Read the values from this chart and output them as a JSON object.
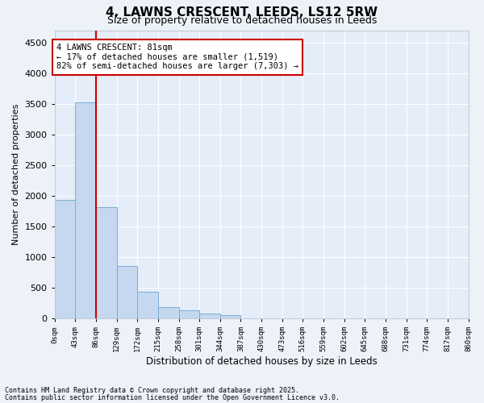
{
  "title": "4, LAWNS CRESCENT, LEEDS, LS12 5RW",
  "subtitle": "Size of property relative to detached houses in Leeds",
  "xlabel": "Distribution of detached houses by size in Leeds",
  "ylabel": "Number of detached properties",
  "bin_labels": [
    "0sqm",
    "43sqm",
    "86sqm",
    "129sqm",
    "172sqm",
    "215sqm",
    "258sqm",
    "301sqm",
    "344sqm",
    "387sqm",
    "430sqm",
    "473sqm",
    "516sqm",
    "559sqm",
    "602sqm",
    "645sqm",
    "688sqm",
    "731sqm",
    "774sqm",
    "817sqm",
    "860sqm"
  ],
  "bar_values": [
    1930,
    3520,
    1820,
    850,
    430,
    185,
    130,
    80,
    50,
    0,
    0,
    0,
    0,
    0,
    0,
    0,
    0,
    0,
    0,
    0
  ],
  "bar_color": "#c5d8f0",
  "bar_edge_color": "#7aadd4",
  "vline_color": "#cc0000",
  "ylim_max": 4700,
  "yticks": [
    0,
    500,
    1000,
    1500,
    2000,
    2500,
    3000,
    3500,
    4000,
    4500
  ],
  "annotation_title": "4 LAWNS CRESCENT: 81sqm",
  "annotation_line1": "← 17% of detached houses are smaller (1,519)",
  "annotation_line2": "82% of semi-detached houses are larger (7,303) →",
  "footer_line1": "Contains HM Land Registry data © Crown copyright and database right 2025.",
  "footer_line2": "Contains public sector information licensed under the Open Government Licence v3.0.",
  "fig_bg_color": "#edf2f9",
  "plot_bg_color": "#e4edf8",
  "grid_color": "#ffffff",
  "spine_color": "#c0c8d8"
}
